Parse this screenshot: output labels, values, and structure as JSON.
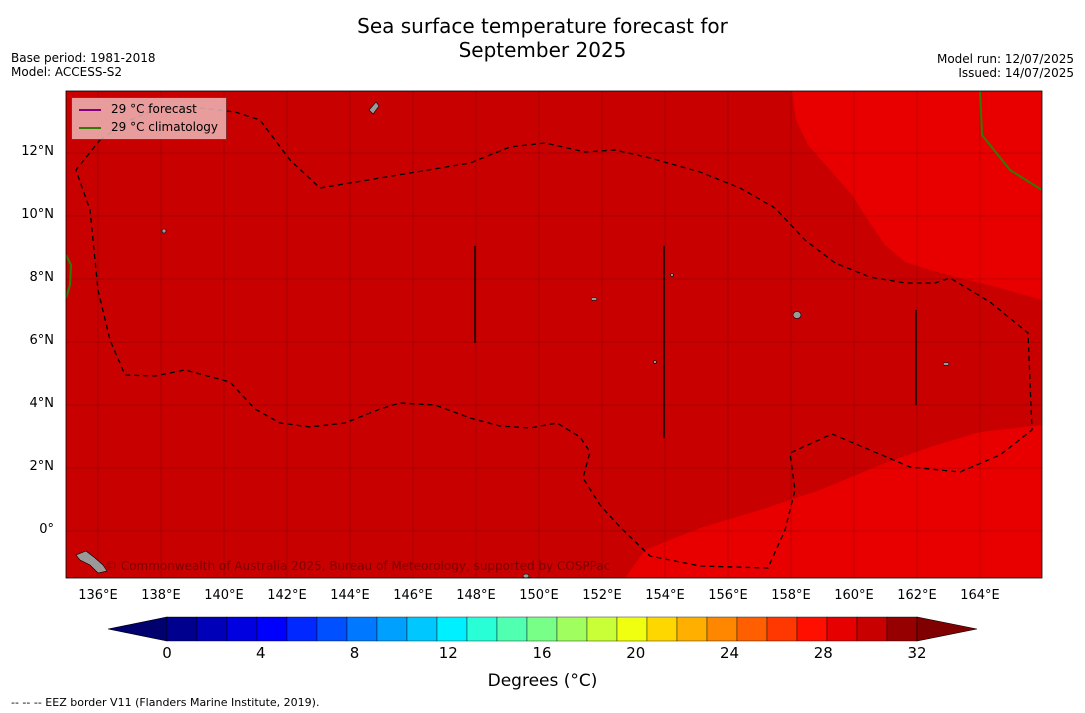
{
  "title_line1": "Sea surface temperature forecast for",
  "title_line2": "September 2025",
  "meta_left": {
    "base_period": "Base period: 1981-2018",
    "model": "Model: ACCESS-S2"
  },
  "meta_right": {
    "model_run": "Model run: 12/07/2025",
    "issued": "Issued: 14/07/2025"
  },
  "legend": [
    {
      "label": "29 °C  forecast",
      "color": "#800080"
    },
    {
      "label": "29 °C  climatology",
      "color": "#2e7d00"
    }
  ],
  "lat_labels": [
    "12°N",
    "10°N",
    "8°N",
    "6°N",
    "4°N",
    "2°N",
    "0°"
  ],
  "lon_labels": [
    "136°E",
    "138°E",
    "140°E",
    "142°E",
    "144°E",
    "146°E",
    "148°E",
    "150°E",
    "152°E",
    "154°E",
    "156°E",
    "158°E",
    "160°E",
    "162°E",
    "164°E"
  ],
  "colorbar": {
    "ticks": [
      "0",
      "4",
      "8",
      "12",
      "16",
      "20",
      "24",
      "28",
      "32"
    ],
    "title": "Degrees (°C)",
    "colors": [
      "#00008f",
      "#0000b8",
      "#0000e0",
      "#0000ff",
      "#0028ff",
      "#0050ff",
      "#0078ff",
      "#00a0ff",
      "#00c8ff",
      "#00f0ff",
      "#28ffd7",
      "#50ffaf",
      "#78ff87",
      "#a0ff5f",
      "#c8ff37",
      "#f0ff0f",
      "#ffd700",
      "#ffaf00",
      "#ff8700",
      "#ff5f00",
      "#ff3700",
      "#ff0f00",
      "#e60000",
      "#c80000",
      "#960000"
    ],
    "under_color": "#00006e",
    "over_color": "#800000"
  },
  "copyright": "© Commonwealth of Australia 2025, Bureau of Meteorology, supported by COSPPac",
  "footnote": "--  --  -- EEZ border V11 (Flanders Marine Institute, 2019).",
  "field_colors": {
    "warm_29": "#e80000",
    "warm_30": "#c80000",
    "land": "#9a9a9a"
  }
}
